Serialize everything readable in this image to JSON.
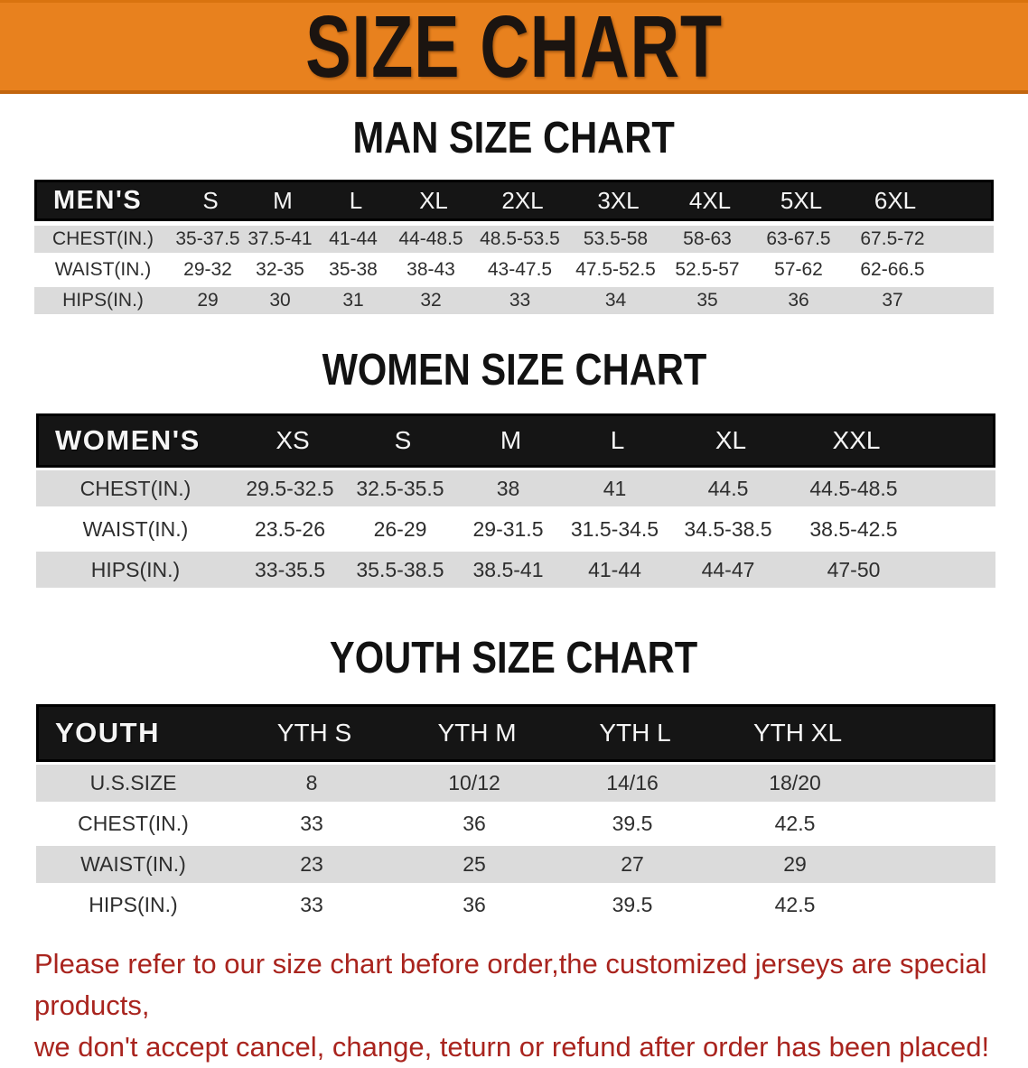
{
  "banner": {
    "title": "SIZE CHART"
  },
  "colors": {
    "banner_orange": "#E8811E",
    "header_black": "#151515",
    "stripe_gray": "#DBDBDB",
    "warning_red": "#A9241E"
  },
  "sections": [
    {
      "id": "men",
      "heading": "MAN SIZE CHART",
      "table": {
        "header_label": "MEN'S",
        "sizes": [
          "S",
          "M",
          "L",
          "XL",
          "2XL",
          "3XL",
          "4XL",
          "5XL",
          "6XL"
        ],
        "rows": [
          {
            "label": "CHEST(IN.)",
            "values": [
              "35-37.5",
              "37.5-41",
              "41-44",
              "44-48.5",
              "48.5-53.5",
              "53.5-58",
              "58-63",
              "63-67.5",
              "67.5-72"
            ]
          },
          {
            "label": "WAIST(IN.)",
            "values": [
              "29-32",
              "32-35",
              "35-38",
              "38-43",
              "43-47.5",
              "47.5-52.5",
              "52.5-57",
              "57-62",
              "62-66.5"
            ]
          },
          {
            "label": "HIPS(IN.)",
            "values": [
              "29",
              "30",
              "31",
              "32",
              "33",
              "34",
              "35",
              "36",
              "37"
            ]
          }
        ]
      }
    },
    {
      "id": "women",
      "heading": "WOMEN SIZE CHART",
      "table": {
        "header_label": "WOMEN'S",
        "sizes": [
          "XS",
          "S",
          "M",
          "L",
          "XL",
          "XXL"
        ],
        "rows": [
          {
            "label": "CHEST(IN.)",
            "values": [
              "29.5-32.5",
              "32.5-35.5",
              "38",
              "41",
              "44.5",
              "44.5-48.5"
            ]
          },
          {
            "label": "WAIST(IN.)",
            "values": [
              "23.5-26",
              "26-29",
              "29-31.5",
              "31.5-34.5",
              "34.5-38.5",
              "38.5-42.5"
            ]
          },
          {
            "label": "HIPS(IN.)",
            "values": [
              "33-35.5",
              "35.5-38.5",
              "38.5-41",
              "41-44",
              "44-47",
              "47-50"
            ]
          }
        ]
      }
    },
    {
      "id": "youth",
      "heading": "YOUTH SIZE CHART",
      "table": {
        "header_label": "YOUTH",
        "sizes": [
          "YTH S",
          "YTH M",
          "YTH L",
          "YTH XL"
        ],
        "rows": [
          {
            "label": "U.S.SIZE",
            "values": [
              "8",
              "10/12",
              "14/16",
              "18/20"
            ]
          },
          {
            "label": "CHEST(IN.)",
            "values": [
              "33",
              "36",
              "39.5",
              "42.5"
            ]
          },
          {
            "label": "WAIST(IN.)",
            "values": [
              "23",
              "25",
              "27",
              "29"
            ]
          },
          {
            "label": "HIPS(IN.)",
            "values": [
              "33",
              "36",
              "39.5",
              "42.5"
            ]
          }
        ]
      }
    }
  ],
  "disclaimer": {
    "lines": [
      "Please refer to our size chart before order,the customized jerseys are special products,",
      "we don't accept cancel, change, teturn or refund after order has been placed!"
    ]
  }
}
